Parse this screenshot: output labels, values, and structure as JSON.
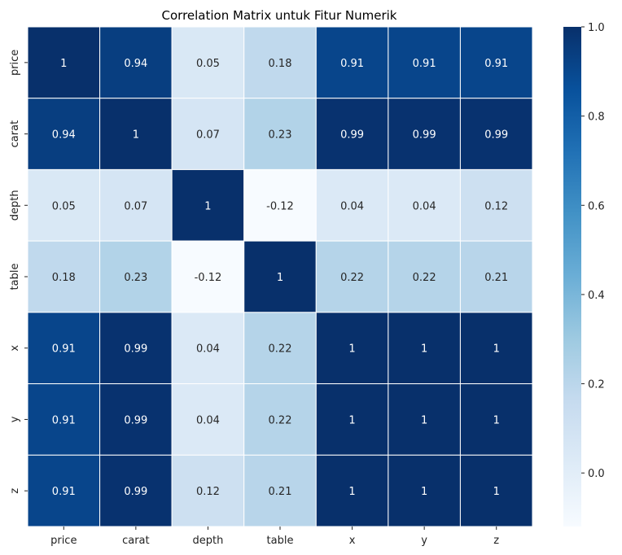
{
  "chart_data": {
    "type": "heatmap",
    "title": "Correlation Matrix untuk Fitur Numerik",
    "xlabel": "",
    "ylabel": "",
    "x_categories": [
      "price",
      "carat",
      "depth",
      "table",
      "x",
      "y",
      "z"
    ],
    "y_categories": [
      "price",
      "carat",
      "depth",
      "table",
      "x",
      "y",
      "z"
    ],
    "values": [
      [
        1,
        0.94,
        0.05,
        0.18,
        0.91,
        0.91,
        0.91
      ],
      [
        0.94,
        1,
        0.07,
        0.23,
        0.99,
        0.99,
        0.99
      ],
      [
        0.05,
        0.07,
        1,
        -0.12,
        0.04,
        0.04,
        0.12
      ],
      [
        0.18,
        0.23,
        -0.12,
        1,
        0.22,
        0.22,
        0.21
      ],
      [
        0.91,
        0.99,
        0.04,
        0.22,
        1,
        1,
        1
      ],
      [
        0.91,
        0.99,
        0.04,
        0.22,
        1,
        1,
        1
      ],
      [
        0.91,
        0.99,
        0.12,
        0.21,
        1,
        1,
        1
      ]
    ],
    "labels": [
      [
        "1",
        "0.94",
        "0.05",
        "0.18",
        "0.91",
        "0.91",
        "0.91"
      ],
      [
        "0.94",
        "1",
        "0.07",
        "0.23",
        "0.99",
        "0.99",
        "0.99"
      ],
      [
        "0.05",
        "0.07",
        "1",
        "-0.12",
        "0.04",
        "0.04",
        "0.12"
      ],
      [
        "0.18",
        "0.23",
        "-0.12",
        "1",
        "0.22",
        "0.22",
        "0.21"
      ],
      [
        "0.91",
        "0.99",
        "0.04",
        "0.22",
        "1",
        "1",
        "1"
      ],
      [
        "0.91",
        "0.99",
        "0.04",
        "0.22",
        "1",
        "1",
        "1"
      ],
      [
        "0.91",
        "0.99",
        "0.12",
        "0.21",
        "1",
        "1",
        "1"
      ]
    ],
    "color_scale": {
      "colormap": "Blues",
      "vmin": -0.12,
      "vmax": 1.0,
      "ticks": [
        "0.0",
        "0.2",
        "0.4",
        "0.6",
        "0.8",
        "1.0"
      ],
      "tick_values": [
        0.0,
        0.2,
        0.4,
        0.6,
        0.8,
        1.0
      ]
    },
    "grid": true,
    "legend": "colorbar-right"
  }
}
